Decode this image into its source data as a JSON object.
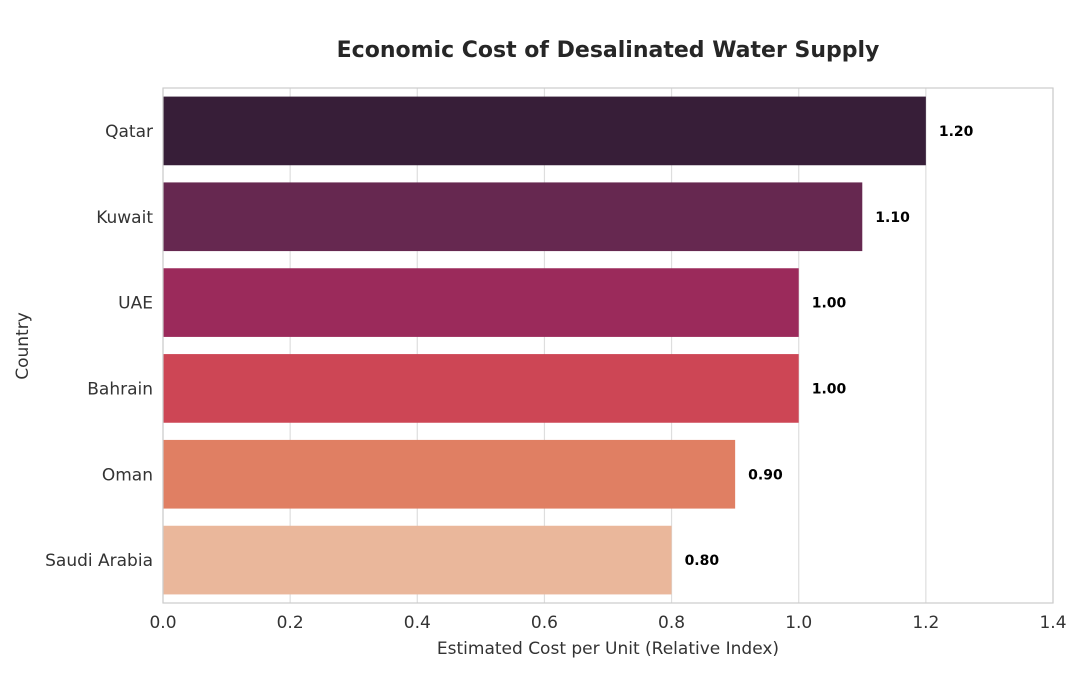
{
  "chart_data": {
    "type": "bar",
    "orientation": "horizontal",
    "title": "Economic Cost of Desalinated Water Supply",
    "xlabel": "Estimated Cost per Unit (Relative Index)",
    "ylabel": "Country",
    "categories": [
      "Qatar",
      "Kuwait",
      "UAE",
      "Bahrain",
      "Oman",
      "Saudi Arabia"
    ],
    "values": [
      1.2,
      1.1,
      1.0,
      1.0,
      0.9,
      0.8
    ],
    "value_labels": [
      "1.20",
      "1.10",
      "1.00",
      "1.00",
      "0.90",
      "0.80"
    ],
    "bar_colors": [
      "#371e38",
      "#662850",
      "#9b2a5b",
      "#cd4655",
      "#e07f63",
      "#eab79b"
    ],
    "xlim": [
      0,
      1.4
    ],
    "xticks": [
      0.0,
      0.2,
      0.4,
      0.6,
      0.8,
      1.0,
      1.2,
      1.4
    ],
    "xtick_labels": [
      "0.0",
      "0.2",
      "0.4",
      "0.6",
      "0.8",
      "1.0",
      "1.2",
      "1.4"
    ],
    "grid": true
  }
}
